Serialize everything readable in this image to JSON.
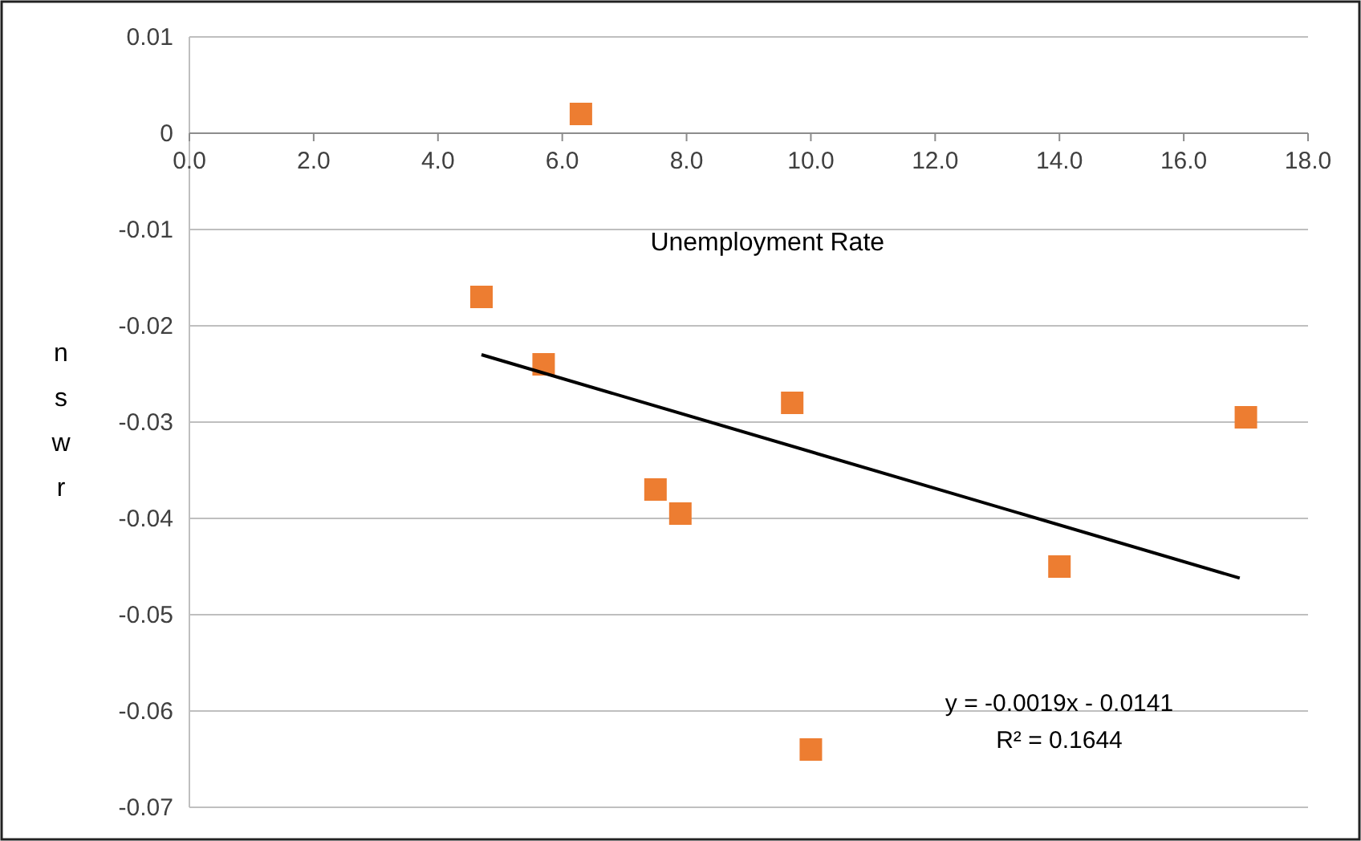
{
  "chart_data": {
    "type": "scatter",
    "xlabel": "Unemployment Rate",
    "ylabel": "nswr",
    "series": [
      {
        "color": "#ed7d31",
        "marker": "square",
        "x": [
          4.7,
          6.3,
          5.7,
          7.5,
          7.9,
          9.7,
          10.0,
          14.0,
          17.0
        ],
        "values": [
          -0.017,
          0.002,
          -0.024,
          -0.037,
          -0.0395,
          -0.028,
          -0.064,
          -0.045,
          -0.0295
        ]
      },
      {
        "type": "line",
        "color": "#000000",
        "marker": "none",
        "x": [
          4.7,
          16.9
        ],
        "values": [
          -0.023,
          -0.0462
        ]
      }
    ],
    "xlim": [
      0,
      18
    ],
    "xticks": [
      {
        "value": 0,
        "label": "0.0"
      },
      {
        "value": 2,
        "label": "2.0"
      },
      {
        "value": 4,
        "label": "4.0"
      },
      {
        "value": 6,
        "label": "6.0"
      },
      {
        "value": 8,
        "label": "8.0"
      },
      {
        "value": 10,
        "label": "10.0"
      },
      {
        "value": 12,
        "label": "12.0"
      },
      {
        "value": 14,
        "label": "14.0"
      },
      {
        "value": 16,
        "label": "16.0"
      },
      {
        "value": 18,
        "label": "18.0"
      }
    ],
    "ylim": [
      -0.07,
      0.01
    ],
    "yticks": [
      0.01,
      0,
      -0.01,
      -0.02,
      -0.03,
      -0.04,
      -0.05,
      -0.06,
      -0.07
    ],
    "grid": "y",
    "annotations": [
      "y = -0.0019x - 0.0141",
      "R² = 0.1644"
    ]
  }
}
